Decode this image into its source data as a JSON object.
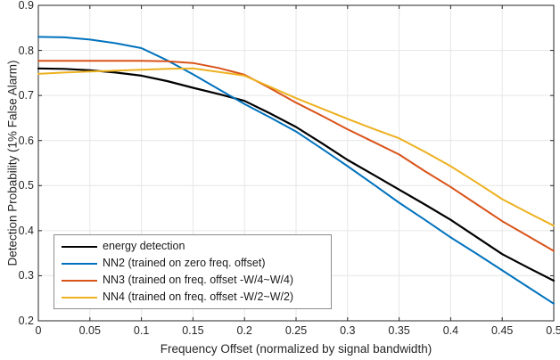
{
  "figure": {
    "background": "#ffffff",
    "axis_color": "#262626",
    "grid_color": "#e6e6e6",
    "legend_border_color": "#8c8c8c"
  },
  "chart_data": {
    "type": "line",
    "title": "",
    "xlabel": "Frequency Offset (normalized by signal bandwidth)",
    "ylabel": "Detection Probability (1% False Alarm)",
    "xlim": [
      0,
      0.5
    ],
    "ylim": [
      0.2,
      0.9
    ],
    "grid": true,
    "legend_position": "inside-bottom-left",
    "x_ticks": [
      "0",
      "0.05",
      "0.1",
      "0.15",
      "0.2",
      "0.25",
      "0.3",
      "0.35",
      "0.4",
      "0.45",
      "0.5"
    ],
    "y_ticks": [
      "0.2",
      "0.3",
      "0.4",
      "0.5",
      "0.6",
      "0.7",
      "0.8",
      "0.9"
    ],
    "x": [
      0,
      0.025,
      0.05,
      0.075,
      0.1,
      0.125,
      0.15,
      0.175,
      0.2,
      0.225,
      0.25,
      0.275,
      0.3,
      0.325,
      0.35,
      0.375,
      0.4,
      0.425,
      0.45,
      0.475,
      0.5
    ],
    "series": [
      {
        "name": "energy detection",
        "color": "#000000",
        "line_width": 2.2,
        "values": [
          0.76,
          0.759,
          0.756,
          0.751,
          0.744,
          0.732,
          0.717,
          0.703,
          0.688,
          0.66,
          0.63,
          0.594,
          0.557,
          0.524,
          0.491,
          0.458,
          0.424,
          0.386,
          0.348,
          0.318,
          0.289
        ]
      },
      {
        "name": "NN2 (trained on zero freq. offset)",
        "color": "#0072BD",
        "line_width": 2,
        "values": [
          0.83,
          0.829,
          0.824,
          0.816,
          0.805,
          0.778,
          0.747,
          0.714,
          0.681,
          0.651,
          0.62,
          0.582,
          0.543,
          0.503,
          0.462,
          0.424,
          0.385,
          0.349,
          0.312,
          0.275,
          0.238
        ]
      },
      {
        "name": "NN3 (trained on freq. offset -W/4~W/4)",
        "color": "#D95319",
        "line_width": 2,
        "values": [
          0.777,
          0.777,
          0.777,
          0.777,
          0.777,
          0.776,
          0.772,
          0.761,
          0.746,
          0.716,
          0.684,
          0.655,
          0.625,
          0.597,
          0.569,
          0.532,
          0.497,
          0.459,
          0.421,
          0.388,
          0.355
        ]
      },
      {
        "name": "NN4 (trained on freq. offset -W/2~W/2)",
        "color": "#EDB120",
        "line_width": 2,
        "values": [
          0.748,
          0.751,
          0.753,
          0.755,
          0.757,
          0.759,
          0.76,
          0.752,
          0.744,
          0.719,
          0.694,
          0.671,
          0.648,
          0.626,
          0.605,
          0.575,
          0.543,
          0.507,
          0.47,
          0.44,
          0.411
        ]
      }
    ]
  }
}
